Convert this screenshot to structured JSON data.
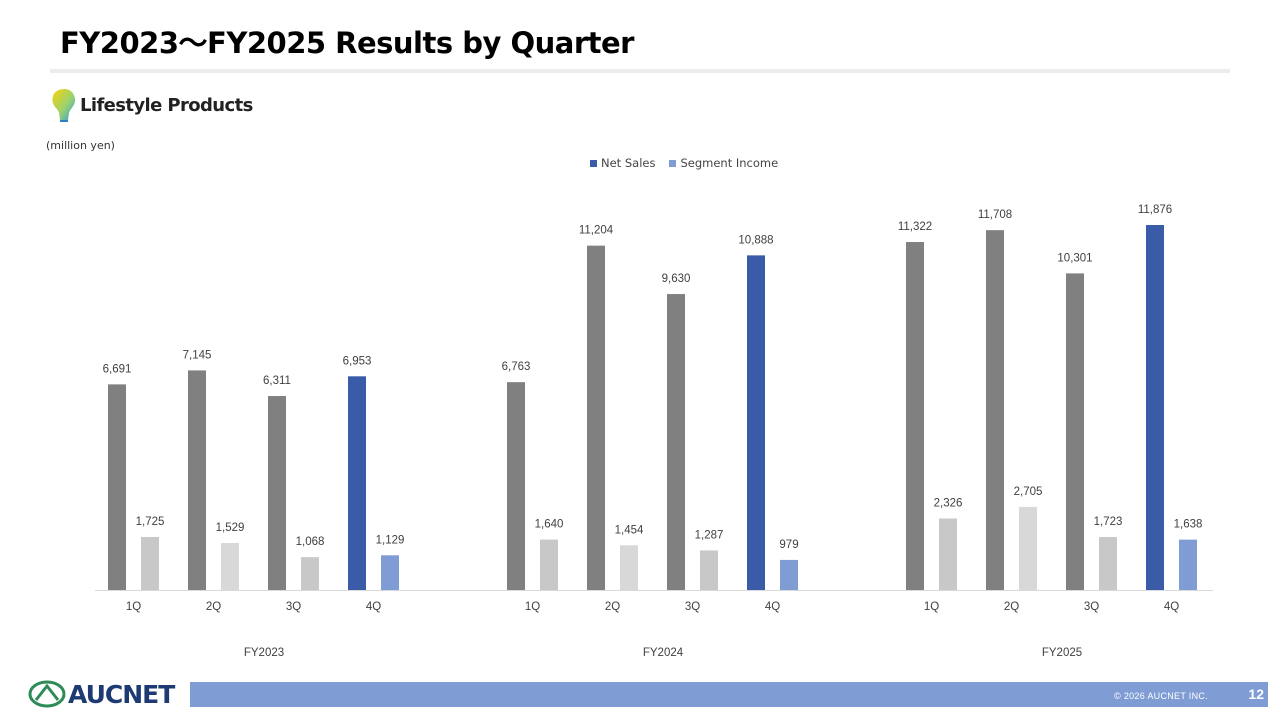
{
  "page": {
    "title": "FY2023～FY2025 Results by Quarter",
    "segment_name": "Lifestyle Products",
    "unit": "(million yen)",
    "company": "AUCNET",
    "copyright": "© 2026 AUCNET INC.",
    "page_number": "12"
  },
  "chart_data": {
    "type": "bar",
    "title": "",
    "xlabel": "",
    "ylabel": "",
    "ylim": [
      0,
      13500
    ],
    "grid": false,
    "legend": "top-center",
    "groups": [
      {
        "label": "FY2023",
        "categories": [
          "1Q",
          "2Q",
          "3Q",
          "4Q"
        ],
        "net_sales": [
          6691,
          7145,
          6311,
          6953
        ],
        "net_sales_labels": [
          "6,691",
          "7,145",
          "6,311",
          "6,953"
        ],
        "segment_income": [
          1725,
          1529,
          1068,
          1129
        ],
        "segment_income_labels": [
          "1,725",
          "1,529",
          "1,068",
          "1,129"
        ]
      },
      {
        "label": "FY2024",
        "categories": [
          "1Q",
          "2Q",
          "3Q",
          "4Q"
        ],
        "net_sales": [
          6763,
          11204,
          9630,
          10888
        ],
        "net_sales_labels": [
          "6,763",
          "11,204",
          "9,630",
          "10,888"
        ],
        "segment_income": [
          1640,
          1454,
          1287,
          979
        ],
        "segment_income_labels": [
          "1,640",
          "1,454",
          "1,287",
          "979"
        ]
      },
      {
        "label": "FY2025",
        "categories": [
          "1Q",
          "2Q",
          "3Q",
          "4Q"
        ],
        "net_sales": [
          11322,
          11708,
          10301,
          11876
        ],
        "net_sales_labels": [
          "11,322",
          "11,708",
          "10,301",
          "11,876"
        ],
        "segment_income": [
          2326,
          2705,
          1723,
          1638
        ],
        "segment_income_labels": [
          "2,326",
          "2,705",
          "1,723",
          "1,638"
        ]
      }
    ],
    "series": [
      {
        "name": "Net Sales",
        "key": "net_sales"
      },
      {
        "name": "Segment Income",
        "key": "segment_income"
      }
    ],
    "colors": {
      "net_sales": "#808080",
      "net_sales_highlight": "#3a5ca8",
      "segment_income": "#c8c8c8",
      "segment_income_alt": "#d8d8d8",
      "segment_income_highlight": "#7f9cd4",
      "legend_net_sales": "#3a5ca8",
      "legend_segment_income": "#7f9cd4"
    }
  }
}
